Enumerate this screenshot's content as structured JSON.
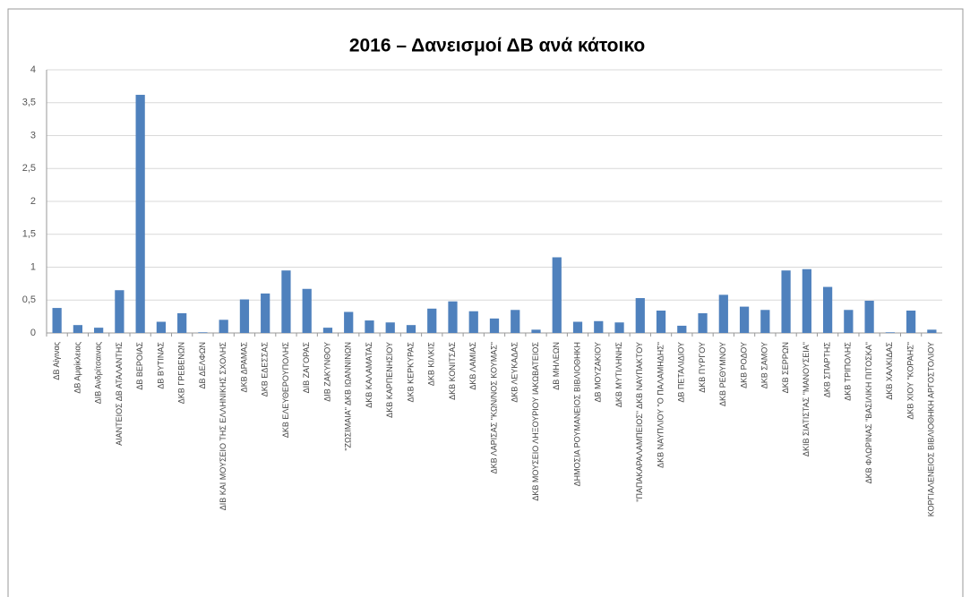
{
  "chart_data": {
    "type": "bar",
    "title": "2016 – Δανεισμοί ΔΒ ανά κάτοικο",
    "categories": [
      "ΔΒ Αίγινας",
      "ΔΒ Αμφίκλειας",
      "ΔΙΒ Ανδρίτσαινας",
      "ΑΙΑΝΤΕΙΟΣ ΔΒ ΑΤΑΛΑΝΤΗΣ",
      "ΔΒ ΒΕΡΟΙΑΣ",
      "ΔΒ ΒΥΤΙΝΑΣ",
      "ΔΚΒ ΓΡΕΒΕΝΩΝ",
      "ΔΒ ΔΕΛΦΩΝ",
      "ΔΙΒ ΚΑΙ ΜΟΥΣΕΙΟ ΤΗΣ ΕΛΛΗΝΙΚΗΣ ΣΧΟΛΗΣ",
      "ΔΚΒ ΔΡΑΜΑΣ",
      "ΔΚΒ ΕΔΕΣΣΑΣ",
      "ΔΚΒ ΕΛΕΥΘΕΡΟΥΠΟΛΗΣ",
      "ΔΙΒ ΖΑΓΟΡΑΣ",
      "ΔΙΒ ΖΑΚΥΝΘΟΥ",
      "\"ΖΩΣΙΜΑΙΑ\" ΔΚΒ ΙΩΑΝΝΙΝΩΝ",
      "ΔΚΒ ΚΑΛΑΜΑΤΑΣ",
      "ΔΚΒ ΚΑΡΠΕΝΗΣΙΟΥ",
      "ΔΚΒ ΚΕΡΚΥΡΑΣ",
      "ΔΚΒ ΚΙΛΚΙΣ",
      "ΔΚΒ ΚΟΝΙΤΣΑΣ",
      "ΔΚΒ ΛΑΜΙΑΣ",
      "ΔΚΒ ΛΑΡΙΣΑΣ \"ΚΩΝ/ΝΟΣ ΚΟΥΜΑΣ\"",
      "ΔΚΒ ΛΕΥΚΑΔΑΣ",
      "ΔΚΒ ΜΟΥΣΕΙΟ ΛΗΞΟΥΡΙΟΥ ΙΑΚΩΒΑΤΕΙΟΣ",
      "ΔΒ ΜΗΛΕΩΝ",
      "ΔΗΜΟΣΙΑ ΡΟΥΜΑΝΕΙΟΣ ΒΙΒΛΙΟΘΗΚΗ",
      "ΔΒ ΜΟΥΖΑΚΙΟΥ",
      "ΔΚΒ ΜΥΤΙΛΗΝΗΣ",
      "\"ΠΑΠΑΚΑΡΑΛΑΜΠΕΙΟΣ\" ΔΚΒ ΝΑΥΠΑΚΤΟΥ",
      "ΔΚΒ ΝΑΥΠΛΙΟΥ \"Ο ΠΑΛΑΜΗΔΗΣ\"",
      "ΔΒ ΠΕΤΑΛΙΔΙΟΥ",
      "ΔΚΒ ΠΥΡΓΟΥ",
      "ΔΚΒ ΡΕΘΥΜΝΟΥ",
      "ΔΚΒ ΡΟΔΟΥ",
      "ΔΚΒ ΣΑΜΟΥ",
      "ΔΚΒ ΣΕΡΡΩΝ",
      "ΔΚΙΒ ΣΙΑΤΙΣΤΑΣ \"ΜΑΝΟΥΣΕΙΑ\"",
      "ΔΚΒ ΣΠΑΡΤΗΣ",
      "ΔΚΒ ΤΡΙΠΟΛΗΣ",
      "ΔΚΒ ΦΛΩΡΙΝΑΣ \"ΒΑΣΙΛΙΚΗ ΠΙΤΟΣΚΑ\"",
      "ΔΚΒ ΧΑΛΚΙΔΑΣ",
      "ΔΚΒ ΧΙΟΥ \"ΚΟΡΑΗΣ\"",
      "ΚΟΡΓΙΑΛΕΝΕΙΟΣ ΒΙΒΛΙΟΘΗΚΗ ΑΡΓΟΣΤΟΛΙΟΥ"
    ],
    "values": [
      0.38,
      0.12,
      0.08,
      0.65,
      3.62,
      0.17,
      0.3,
      0.01,
      0.2,
      0.51,
      0.6,
      0.95,
      0.67,
      0.08,
      0.32,
      0.19,
      0.16,
      0.12,
      0.37,
      0.48,
      0.33,
      0.22,
      0.35,
      0.05,
      1.15,
      0.17,
      0.18,
      0.16,
      0.53,
      0.34,
      0.11,
      0.3,
      0.58,
      0.4,
      0.35,
      0.95,
      0.97,
      0.7,
      0.35,
      0.49,
      0.01,
      0.34,
      0.05
    ],
    "color": "#4f81bd",
    "ylim": [
      0,
      4
    ],
    "yticks": [
      0,
      {
        "value": 0.5,
        "label": "0,5"
      },
      1,
      {
        "value": 1.5,
        "label": "1,5"
      },
      2,
      {
        "value": 2.5,
        "label": "2,5"
      },
      3,
      {
        "value": 3.5,
        "label": "3,5"
      },
      4
    ],
    "grid": true
  }
}
